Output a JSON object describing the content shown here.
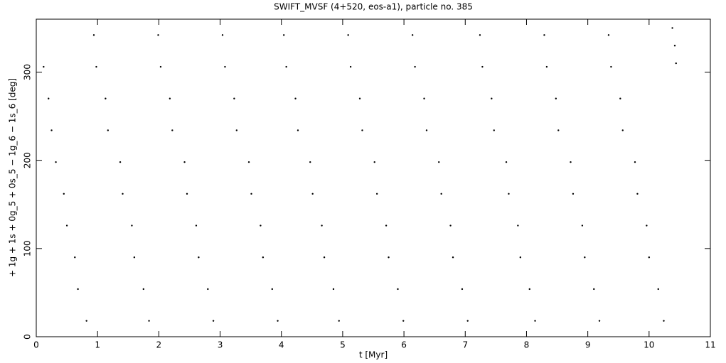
{
  "chart_data": {
    "type": "scatter",
    "title": "SWIFT_MVSF (4+520, eos-a1), particle no. 385",
    "xlabel": "t [Myr]",
    "ylabel": "+ 1g + 1s + 0g_5 + 0s_5 − 1g_6 − 1s_6 [deg]",
    "xlim": [
      0,
      11
    ],
    "ylim": [
      0,
      360
    ],
    "xticks": [
      0,
      1,
      2,
      3,
      4,
      5,
      6,
      7,
      8,
      9,
      10,
      11
    ],
    "yticks": [
      0,
      100,
      200,
      300
    ],
    "color": "#000000",
    "x": [
      0.12,
      0.2,
      0.25,
      0.32,
      0.45,
      0.5,
      0.63,
      0.68,
      0.82,
      0.94,
      0.98,
      1.13,
      1.17,
      1.37,
      1.41,
      1.56,
      1.6,
      1.75,
      1.84,
      1.99,
      2.03,
      2.18,
      2.22,
      2.42,
      2.46,
      2.61,
      2.65,
      2.8,
      2.89,
      3.04,
      3.08,
      3.23,
      3.27,
      3.47,
      3.51,
      3.66,
      3.7,
      3.85,
      3.94,
      4.04,
      4.08,
      4.23,
      4.27,
      4.47,
      4.51,
      4.66,
      4.7,
      4.85,
      4.94,
      5.09,
      5.13,
      5.28,
      5.32,
      5.52,
      5.56,
      5.71,
      5.75,
      5.9,
      5.99,
      6.14,
      6.18,
      6.33,
      6.37,
      6.57,
      6.61,
      6.76,
      6.8,
      6.95,
      7.04,
      7.24,
      7.28,
      7.43,
      7.47,
      7.67,
      7.71,
      7.86,
      7.9,
      8.05,
      8.14,
      8.29,
      8.33,
      8.48,
      8.52,
      8.72,
      8.76,
      8.91,
      8.95,
      9.1,
      9.19,
      9.34,
      9.38,
      9.53,
      9.57,
      9.77,
      9.81,
      9.96,
      10.0,
      10.15,
      10.24,
      10.38,
      10.42,
      10.44
    ],
    "y": [
      306,
      270,
      234,
      198,
      162,
      126,
      90,
      54,
      18,
      342,
      306,
      270,
      234,
      198,
      162,
      126,
      90,
      54,
      18,
      342,
      306,
      270,
      234,
      198,
      162,
      126,
      90,
      54,
      18,
      342,
      306,
      270,
      234,
      198,
      162,
      126,
      90,
      54,
      18,
      342,
      306,
      270,
      234,
      198,
      162,
      126,
      90,
      54,
      18,
      342,
      306,
      270,
      234,
      198,
      162,
      126,
      90,
      54,
      18,
      342,
      306,
      270,
      234,
      198,
      162,
      126,
      90,
      54,
      18,
      342,
      306,
      270,
      234,
      198,
      162,
      126,
      90,
      54,
      18,
      342,
      306,
      270,
      234,
      198,
      162,
      126,
      90,
      54,
      18,
      342,
      306,
      270,
      234,
      198,
      162,
      126,
      90,
      54,
      18,
      350,
      330,
      310
    ]
  }
}
